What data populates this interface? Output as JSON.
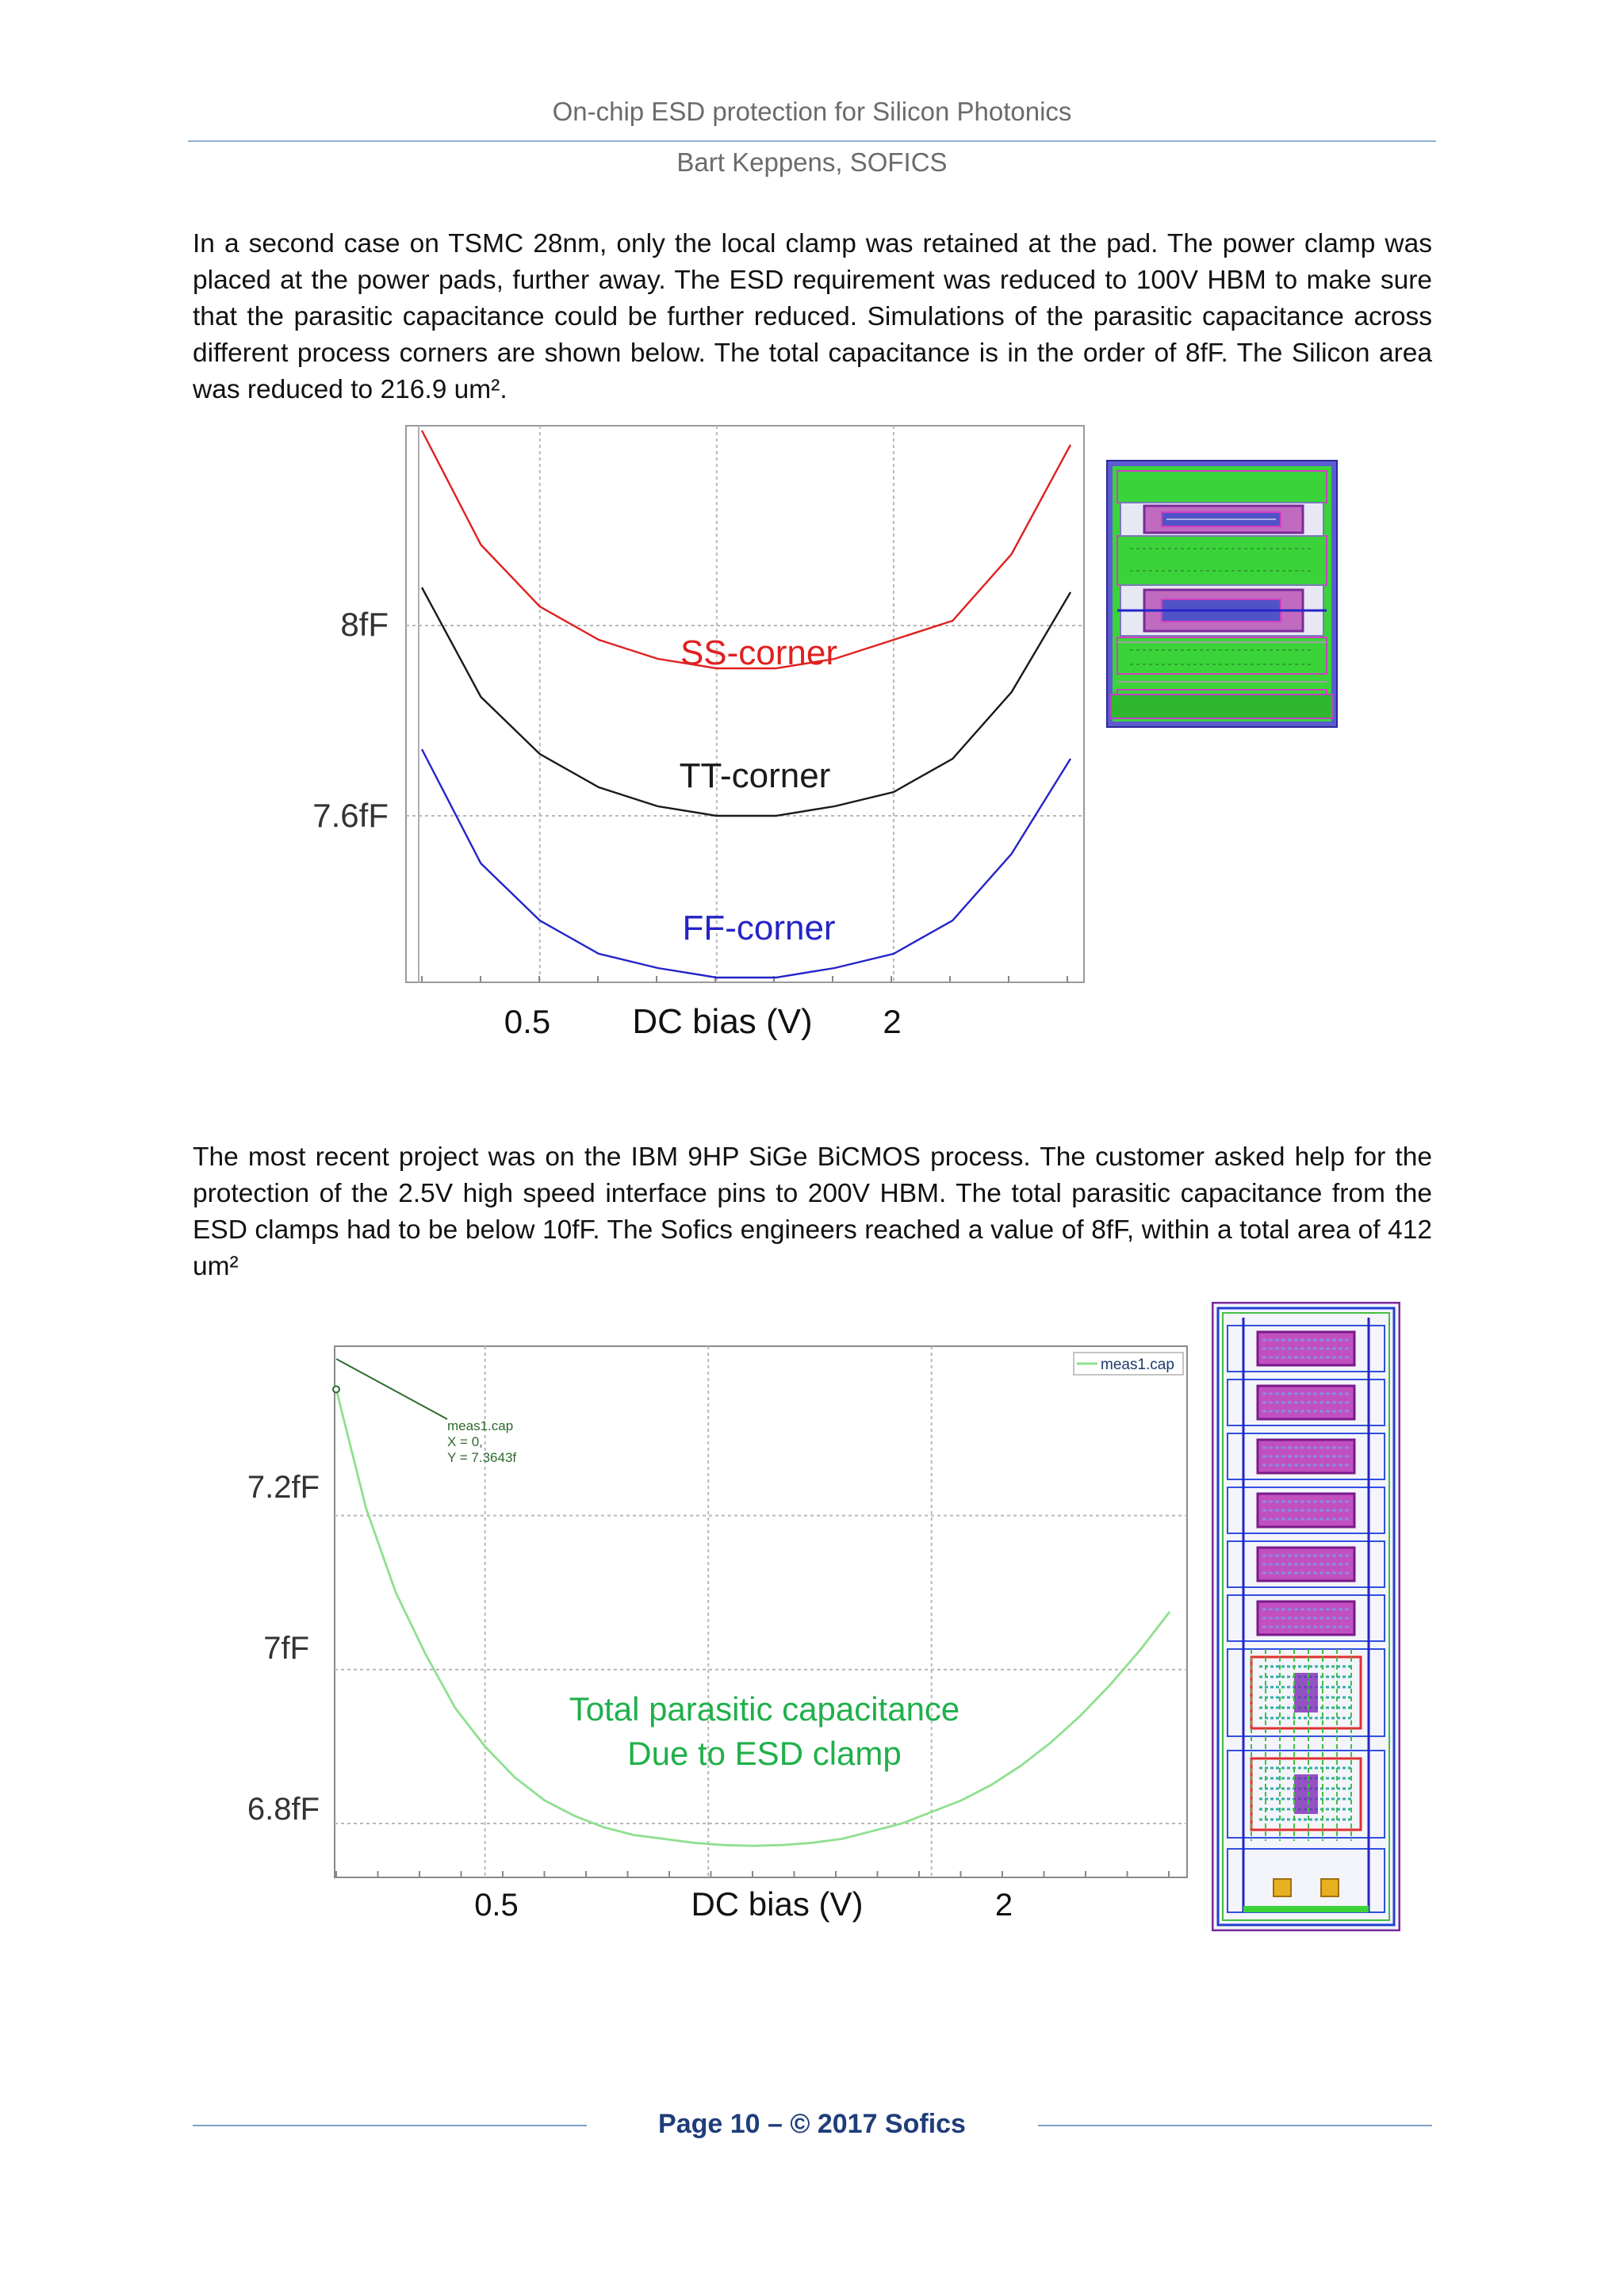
{
  "header": {
    "title": "On-chip ESD protection for Silicon Photonics",
    "author": "Bart Keppens, SOFICS"
  },
  "paragraph1": "In a second case on TSMC 28nm, only the local clamp was retained at the pad. The power clamp was placed at the power pads, further away. The ESD requirement was reduced to 100V HBM to make sure that the parasitic capacitance could be further reduced. Simulations of the parasitic capacitance across different process corners are shown below. The total capacitance is in the order of 8fF. The Silicon area was reduced to 216.9 um².",
  "paragraph2": "The most recent project was on the IBM 9HP SiGe BiCMOS process. The customer asked help for the protection of the 2.5V high speed interface pins to 200V HBM. The total parasitic capacitance from the ESD clamps had to be below 10fF. The Sofics engineers reached a value of 8fF, within a total area of 412 um²",
  "footer": "Page 10 – © 2017 Sofics",
  "colors": {
    "ss": "#e02020",
    "tt": "#1a1a1a",
    "ff": "#2424c8",
    "meas": "#8fe08f",
    "annotation_green": "#1fb04a",
    "layout_green": "#3cdc3c",
    "layout_magenta": "#c02ab8",
    "layout_blue": "#3050e0"
  },
  "chart_data": [
    {
      "type": "line",
      "xlabel": "DC bias (V)",
      "x_tick_labels": [
        "0.5",
        "2"
      ],
      "y_tick_labels": [
        "8fF",
        "7.6fF"
      ],
      "x": [
        0.0,
        0.25,
        0.5,
        0.75,
        1.0,
        1.25,
        1.5,
        1.75,
        2.0,
        2.25,
        2.5,
        2.75
      ],
      "ylim": [
        7.25,
        8.42
      ],
      "grid": true,
      "series": [
        {
          "name": "SS-corner",
          "values": [
            8.41,
            8.17,
            8.04,
            7.97,
            7.93,
            7.91,
            7.91,
            7.93,
            7.97,
            8.01,
            8.15,
            8.38
          ]
        },
        {
          "name": "TT-corner",
          "values": [
            8.08,
            7.85,
            7.73,
            7.66,
            7.62,
            7.6,
            7.6,
            7.62,
            7.65,
            7.72,
            7.86,
            8.07
          ]
        },
        {
          "name": "FF-corner",
          "values": [
            7.74,
            7.5,
            7.38,
            7.31,
            7.28,
            7.26,
            7.26,
            7.28,
            7.31,
            7.38,
            7.52,
            7.72
          ]
        }
      ],
      "annotations": [
        "SS-corner",
        "TT-corner",
        "FF-corner"
      ]
    },
    {
      "type": "line",
      "xlabel": "DC bias (V)",
      "x_tick_labels": [
        "0.5",
        "2"
      ],
      "y_tick_labels": [
        "7.2fF",
        "7fF",
        "6.8fF"
      ],
      "ylim": [
        6.73,
        7.42
      ],
      "xlim": [
        0,
        2.8
      ],
      "grid": true,
      "legend": {
        "label": "meas1.cap",
        "placement": "top-right"
      },
      "marker_annotation": {
        "line1": "meas1.cap",
        "line2": "X = 0,",
        "line3": "Y = 7.3643f"
      },
      "series": [
        {
          "name": "meas1.cap",
          "x": [
            0.0,
            0.1,
            0.2,
            0.3,
            0.4,
            0.5,
            0.6,
            0.7,
            0.8,
            0.9,
            1.0,
            1.1,
            1.2,
            1.3,
            1.4,
            1.5,
            1.6,
            1.7,
            1.8,
            1.9,
            2.0,
            2.1,
            2.2,
            2.3,
            2.4,
            2.5,
            2.6,
            2.7,
            2.8
          ],
          "values": [
            7.364,
            7.21,
            7.1,
            7.02,
            6.95,
            6.9,
            6.86,
            6.83,
            6.81,
            6.795,
            6.785,
            6.78,
            6.775,
            6.772,
            6.771,
            6.772,
            6.775,
            6.78,
            6.79,
            6.8,
            6.815,
            6.83,
            6.85,
            6.875,
            6.905,
            6.94,
            6.98,
            7.025,
            7.075
          ]
        }
      ],
      "annotations": [
        "Total parasitic capacitance",
        "Due to ESD clamp"
      ]
    }
  ]
}
